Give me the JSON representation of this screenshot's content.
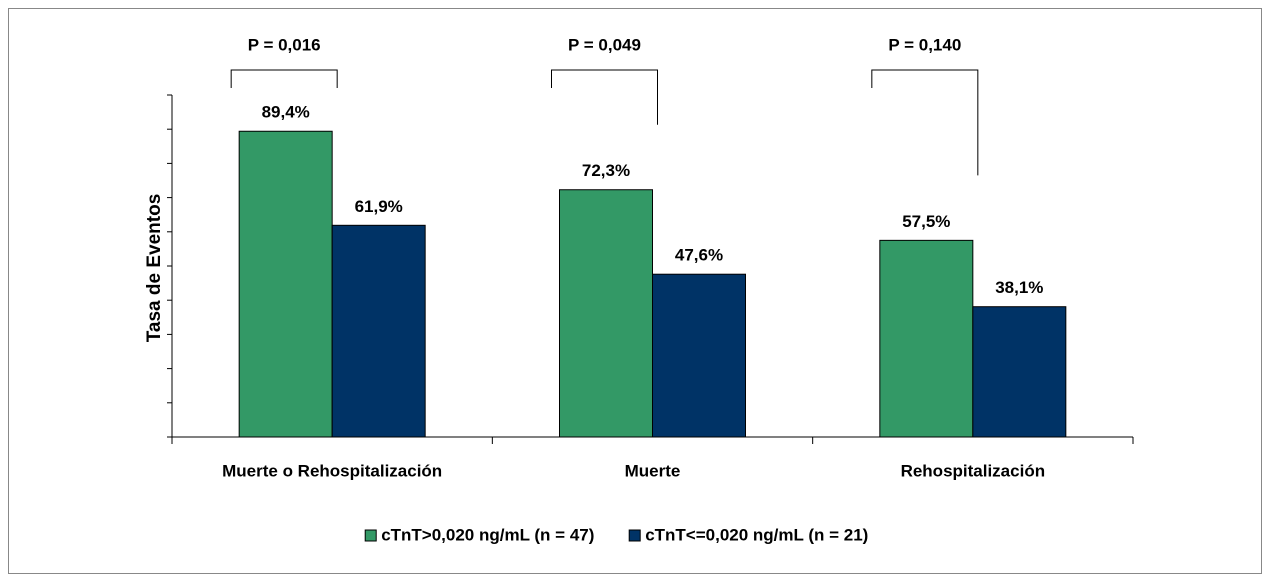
{
  "chart_data": {
    "type": "bar",
    "y_label": "Tasa de Eventos",
    "categories": [
      "Muerte o Rehospitalización",
      "Muerte",
      "Rehospitalización"
    ],
    "series": [
      {
        "name": "cTnT>0,020 ng/mL (n = 47)",
        "color": "#339966",
        "values": [
          89.4,
          72.3,
          57.5
        ],
        "value_labels": [
          "89,4%",
          "72,3%",
          "57,5%"
        ]
      },
      {
        "name": "cTnT<=0,020 ng/mL (n = 21)",
        "color": "#003366",
        "values": [
          61.9,
          47.6,
          38.1
        ],
        "value_labels": [
          "61,9%",
          "47,6%",
          "38,1%"
        ]
      }
    ],
    "annotations": [
      "P = 0,016",
      "P = 0,049",
      "P = 0,140"
    ],
    "ylim": [
      0,
      100
    ],
    "yticks": [
      0,
      10,
      20,
      30,
      40,
      50,
      60,
      70,
      80,
      90,
      100
    ],
    "legend": "bottom"
  }
}
